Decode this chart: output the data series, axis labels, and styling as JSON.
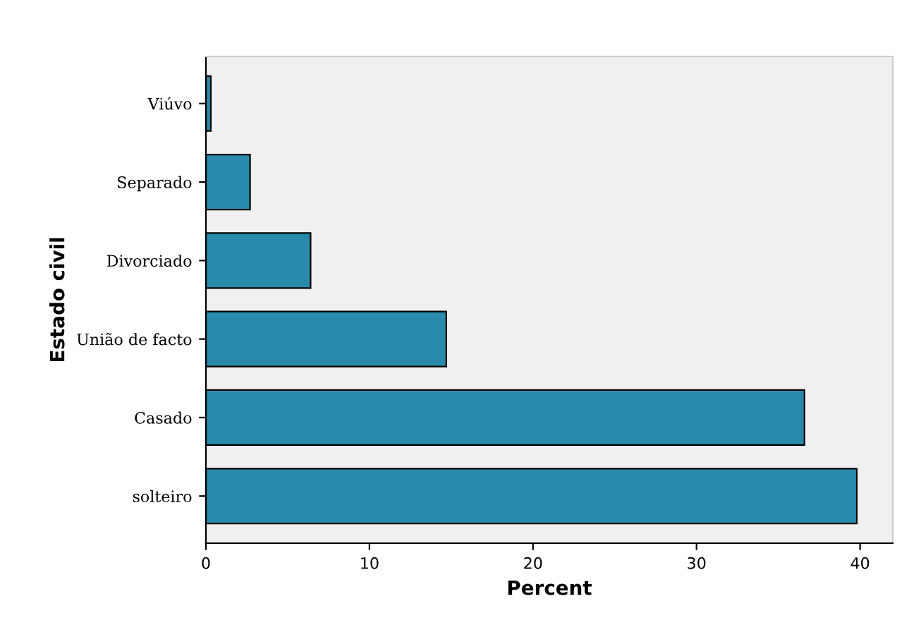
{
  "chart_data": {
    "type": "bar",
    "orientation": "horizontal",
    "xlabel": "Percent",
    "ylabel": "Estado civil",
    "categories": [
      "Viúvo",
      "Separado",
      "Divorciado",
      "União de facto",
      "Casado",
      "solteiro"
    ],
    "values": [
      0.3,
      2.7,
      6.4,
      14.7,
      36.6,
      39.8
    ],
    "color": "#2a8aab",
    "xlim": [
      0,
      42
    ],
    "xticks": [
      0,
      10,
      20,
      30,
      40
    ],
    "grid": false
  }
}
